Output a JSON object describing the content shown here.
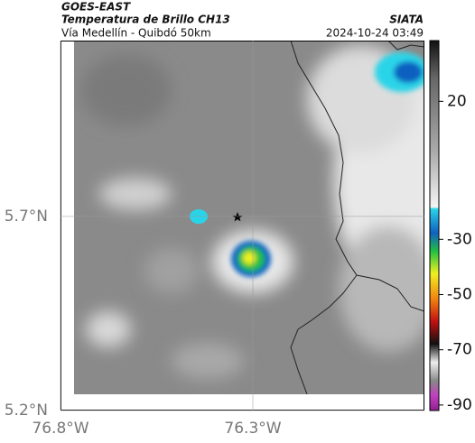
{
  "header": {
    "agency": "GOES-EAST",
    "title": "Temperatura de Brillo CH13",
    "subtitle": "Vía Medellín - Quibdó 50km",
    "source": "SIATA",
    "timestamp": "2024-10-24 03:49"
  },
  "map": {
    "xlim": [
      -76.8,
      -75.854
    ],
    "ylim": [
      5.2,
      6.153
    ],
    "xticks": [
      {
        "value": -76.8,
        "label": "76.8°W"
      },
      {
        "value": -76.3,
        "label": "76.3°W"
      }
    ],
    "yticks": [
      {
        "value": 5.2,
        "label": "5.2°N"
      },
      {
        "value": 5.7,
        "label": "5.7°N"
      }
    ]
  },
  "colorbar": {
    "lim": [
      -92,
      42
    ],
    "ticks": [
      20,
      -30,
      -50,
      -70,
      -90
    ]
  }
}
